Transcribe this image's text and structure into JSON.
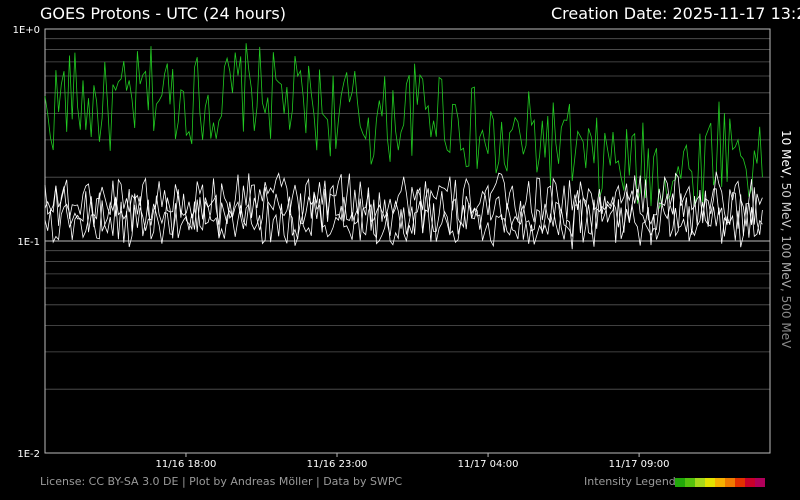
{
  "header": {
    "title": "GOES Protons - UTC (24 hours)",
    "creation": "Creation Date: 2025-11-17 13:2"
  },
  "footer": {
    "license": "License: CC BY-SA 3.0 DE | Plot by Andreas Möller | Data by SWPC",
    "legend_label": "Intensity Legend:",
    "intensity_colors": [
      "#22a80a",
      "#55c10e",
      "#a6d81a",
      "#e3e100",
      "#f5b000",
      "#ef7a00",
      "#e33000",
      "#c9002a",
      "#b0005a"
    ]
  },
  "colors": {
    "background": "#000000",
    "grid": "#555555",
    "axis": "#bbbbbb",
    "series_10mev": "#22cc22",
    "series_other": "#ffffff"
  },
  "chart_data": {
    "type": "line",
    "title": "GOES Protons - UTC (24 hours)",
    "y_scale": "log",
    "ylim": [
      0.01,
      1
    ],
    "y_ticks": [
      1,
      0.1,
      0.01
    ],
    "y_tick_labels": [
      "1E+0",
      "1E-1",
      "1E-2"
    ],
    "xlim": [
      "2025-11-16 13:20",
      "2025-11-17 13:20"
    ],
    "x_ticks": [
      "2025-11-16 18:00",
      "2025-11-16 23:00",
      "2025-11-17 04:00",
      "2025-11-17 09:00"
    ],
    "x_tick_labels": [
      "11/16 18:00",
      "11/16 23:00",
      "11/17 04:00",
      "11/17 09:00"
    ],
    "grid": true,
    "legend_position": "right",
    "legend_text": [
      {
        "label": "10 MeV",
        "color": "#ffffff"
      },
      {
        "label": ", 50 MeV",
        "color": "#cccccc"
      },
      {
        "label": ", 100 MeV",
        "color": "#aaaaaa"
      },
      {
        "label": ", 500 MeV",
        "color": "#888888"
      }
    ],
    "series": [
      {
        "name": "10 MeV",
        "color": "#22cc22",
        "x_start": "2025-11-16 13:20",
        "x_end": "2025-11-17 13:05",
        "values": [
          0.38,
          0.5,
          0.44,
          0.42,
          0.46,
          0.52,
          0.48,
          0.47,
          0.45,
          0.53,
          0.5,
          0.46,
          0.44,
          0.41,
          0.42,
          0.36,
          0.38,
          0.42,
          0.44,
          0.37,
          0.31,
          0.26,
          0.31,
          0.3,
          0.28,
          0.23,
          0.24,
          0.22,
          0.22,
          0.21,
          0.22,
          0.3,
          0.27,
          0.2
        ]
      },
      {
        "name": "50 MeV",
        "color": "#ffffff",
        "x_start": "2025-11-16 13:20",
        "x_end": "2025-11-17 13:05",
        "values": [
          0.17,
          0.16,
          0.15,
          0.16,
          0.17,
          0.15,
          0.16,
          0.16,
          0.15,
          0.16,
          0.17,
          0.16,
          0.15,
          0.16,
          0.16,
          0.15,
          0.16,
          0.17,
          0.16,
          0.15,
          0.16,
          0.16,
          0.15,
          0.16,
          0.16,
          0.15,
          0.16,
          0.16,
          0.15,
          0.16,
          0.17,
          0.16,
          0.15,
          0.16
        ]
      },
      {
        "name": "100 MeV",
        "color": "#ffffff",
        "x_start": "2025-11-16 13:20",
        "x_end": "2025-11-17 13:05",
        "values": [
          0.14,
          0.14,
          0.13,
          0.14,
          0.14,
          0.13,
          0.14,
          0.14,
          0.13,
          0.14,
          0.14,
          0.14,
          0.13,
          0.14,
          0.14,
          0.13,
          0.14,
          0.14,
          0.14,
          0.13,
          0.14,
          0.14,
          0.13,
          0.14,
          0.14,
          0.13,
          0.14,
          0.14,
          0.13,
          0.14,
          0.14,
          0.14,
          0.13,
          0.14
        ]
      },
      {
        "name": "500 MeV",
        "color": "#ffffff",
        "x_start": "2025-11-16 13:20",
        "x_end": "2025-11-17 13:05",
        "values": [
          0.13,
          0.12,
          0.13,
          0.12,
          0.12,
          0.13,
          0.12,
          0.12,
          0.13,
          0.12,
          0.12,
          0.12,
          0.13,
          0.12,
          0.12,
          0.13,
          0.12,
          0.12,
          0.12,
          0.13,
          0.12,
          0.12,
          0.13,
          0.12,
          0.12,
          0.12,
          0.13,
          0.12,
          0.12,
          0.13,
          0.12,
          0.12,
          0.12,
          0.12
        ]
      }
    ]
  }
}
